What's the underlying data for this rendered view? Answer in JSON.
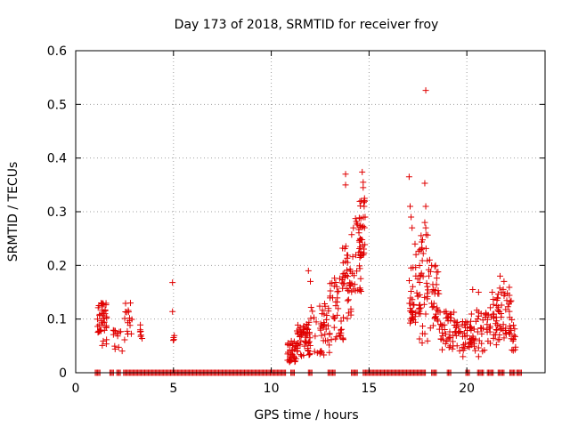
{
  "chart_data": {
    "type": "scatter",
    "title": "Day 173 of 2018, SRMTID for receiver froy",
    "xlabel": "GPS time / hours",
    "ylabel": "SRMTID / TECUs",
    "xlim": [
      0,
      24
    ],
    "ylim": [
      0,
      0.6
    ],
    "xticks": [
      0,
      5,
      10,
      15,
      20
    ],
    "xtick_labels": [
      "0",
      "5",
      "10",
      "15",
      "20"
    ],
    "yticks": [
      0,
      0.1,
      0.2,
      0.3,
      0.4,
      0.5,
      0.6
    ],
    "ytick_labels": [
      "0",
      "0.1",
      "0.2",
      "0.3",
      "0.4",
      "0.5",
      "0.6"
    ],
    "grid": true,
    "marker": "+",
    "series_color": "#e00000",
    "zero_segments": [
      [
        1.0,
        1.25
      ],
      [
        1.75,
        1.95
      ],
      [
        2.1,
        2.3
      ],
      [
        2.45,
        10.75
      ],
      [
        11.0,
        11.2
      ],
      [
        11.9,
        12.1
      ],
      [
        12.9,
        13.3
      ],
      [
        14.1,
        14.4
      ],
      [
        14.7,
        17.9
      ],
      [
        18.2,
        18.45
      ],
      [
        19.0,
        19.2
      ],
      [
        19.95,
        20.15
      ],
      [
        20.55,
        20.85
      ],
      [
        21.05,
        21.35
      ],
      [
        21.6,
        21.9
      ],
      [
        22.2,
        22.45
      ],
      [
        22.55,
        22.8
      ]
    ],
    "clusters": [
      {
        "x_range": [
          1.1,
          1.6
        ],
        "y_range": [
          0.05,
          0.13
        ],
        "count": 40
      },
      {
        "x_range": [
          1.9,
          2.4
        ],
        "y_range": [
          0.04,
          0.08
        ],
        "count": 12
      },
      {
        "x_range": [
          2.5,
          2.9
        ],
        "y_range": [
          0.06,
          0.13
        ],
        "count": 15
      },
      {
        "x_range": [
          3.2,
          3.4
        ],
        "y_range": [
          0.06,
          0.09
        ],
        "count": 6
      },
      {
        "x_range": [
          4.95,
          5.05
        ],
        "y_range": [
          0.06,
          0.075
        ],
        "count": 4
      },
      {
        "x_range": [
          10.8,
          11.3
        ],
        "y_range": [
          0.02,
          0.06
        ],
        "count": 35
      },
      {
        "x_range": [
          11.3,
          12.0
        ],
        "y_range": [
          0.03,
          0.09
        ],
        "count": 50
      },
      {
        "x_range": [
          11.8,
          13.0
        ],
        "y_range": [
          0.03,
          0.13
        ],
        "count": 45
      },
      {
        "x_range": [
          13.0,
          13.7
        ],
        "y_range": [
          0.06,
          0.18
        ],
        "count": 40
      },
      {
        "x_range": [
          13.6,
          14.1
        ],
        "y_range": [
          0.1,
          0.24
        ],
        "count": 35
      },
      {
        "x_range": [
          14.1,
          14.6
        ],
        "y_range": [
          0.15,
          0.29
        ],
        "count": 35
      },
      {
        "x_range": [
          14.5,
          14.8
        ],
        "y_range": [
          0.2,
          0.34
        ],
        "count": 25
      },
      {
        "x_range": [
          17.0,
          17.6
        ],
        "y_range": [
          0.09,
          0.2
        ],
        "count": 40
      },
      {
        "x_range": [
          17.5,
          18.0
        ],
        "y_range": [
          0.05,
          0.26
        ],
        "count": 35
      },
      {
        "x_range": [
          18.0,
          18.6
        ],
        "y_range": [
          0.08,
          0.2
        ],
        "count": 35
      },
      {
        "x_range": [
          18.6,
          19.4
        ],
        "y_range": [
          0.04,
          0.12
        ],
        "count": 40
      },
      {
        "x_range": [
          19.4,
          20.2
        ],
        "y_range": [
          0.04,
          0.1
        ],
        "count": 40
      },
      {
        "x_range": [
          20.2,
          21.0
        ],
        "y_range": [
          0.04,
          0.12
        ],
        "count": 35
      },
      {
        "x_range": [
          21.0,
          21.6
        ],
        "y_range": [
          0.05,
          0.14
        ],
        "count": 35
      },
      {
        "x_range": [
          21.6,
          22.3
        ],
        "y_range": [
          0.06,
          0.16
        ],
        "count": 40
      },
      {
        "x_range": [
          22.2,
          22.5
        ],
        "y_range": [
          0.04,
          0.1
        ],
        "count": 15
      }
    ],
    "points": [
      [
        1.3,
        0.13
      ],
      [
        1.5,
        0.11
      ],
      [
        2.8,
        0.13
      ],
      [
        3.3,
        0.08
      ],
      [
        4.95,
        0.168
      ],
      [
        4.95,
        0.114
      ],
      [
        11.9,
        0.19
      ],
      [
        12.0,
        0.17
      ],
      [
        12.6,
        0.11
      ],
      [
        13.8,
        0.37
      ],
      [
        13.8,
        0.35
      ],
      [
        14.2,
        0.27
      ],
      [
        14.65,
        0.374
      ],
      [
        14.7,
        0.355
      ],
      [
        14.7,
        0.345
      ],
      [
        14.6,
        0.32
      ],
      [
        14.75,
        0.31
      ],
      [
        14.8,
        0.29
      ],
      [
        17.05,
        0.365
      ],
      [
        17.1,
        0.31
      ],
      [
        17.15,
        0.29
      ],
      [
        17.2,
        0.27
      ],
      [
        17.35,
        0.24
      ],
      [
        17.4,
        0.22
      ],
      [
        17.9,
        0.526
      ],
      [
        17.85,
        0.353
      ],
      [
        17.9,
        0.31
      ],
      [
        17.85,
        0.28
      ],
      [
        17.9,
        0.27
      ],
      [
        18.1,
        0.21
      ],
      [
        18.2,
        0.2
      ],
      [
        20.3,
        0.155
      ],
      [
        20.6,
        0.15
      ],
      [
        21.3,
        0.15
      ],
      [
        21.7,
        0.18
      ],
      [
        21.9,
        0.17
      ],
      [
        20.6,
        0.03
      ],
      [
        20.8,
        0.04
      ],
      [
        19.8,
        0.03
      ],
      [
        19.3,
        0.05
      ]
    ]
  }
}
